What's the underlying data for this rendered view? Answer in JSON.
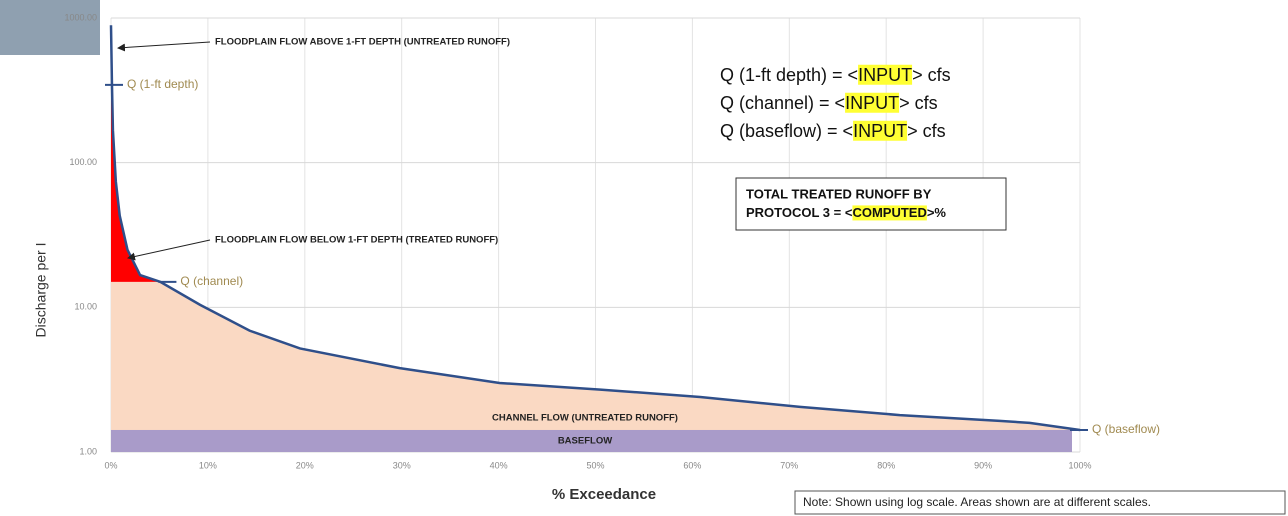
{
  "chart_data": {
    "type": "flow-duration",
    "x_label": "% Exceedance",
    "y_label": "Discharge per I",
    "log_y": true,
    "grid": true,
    "xlim": [
      0,
      100
    ],
    "xticks": [
      {
        "value": 0,
        "label": "0%"
      },
      {
        "value": 10,
        "label": "10%"
      },
      {
        "value": 20,
        "label": "20%"
      },
      {
        "value": 30,
        "label": "30%"
      },
      {
        "value": 40,
        "label": "40%"
      },
      {
        "value": 50,
        "label": "50%"
      },
      {
        "value": 60,
        "label": "60%"
      },
      {
        "value": 70,
        "label": "70%"
      },
      {
        "value": 80,
        "label": "80%"
      },
      {
        "value": 90,
        "label": "90%"
      },
      {
        "value": 100,
        "label": "100%"
      }
    ],
    "ylim": [
      1,
      1000
    ],
    "yticks": [
      {
        "value": 1,
        "label": "1.00"
      },
      {
        "value": 10,
        "label": "10.00"
      },
      {
        "value": 100,
        "label": "100.00"
      },
      {
        "value": 1000,
        "label": "1000.00"
      }
    ],
    "series": [
      {
        "color": "#2f4f8a",
        "x": [
          0,
          0.1,
          0.2,
          0.5,
          0.9,
          1.7,
          3.0,
          5.1,
          9.2,
          14.3,
          19.5,
          29.8,
          40.1,
          50.5,
          60.8,
          71.1,
          81.4,
          91.7,
          94.8,
          100
        ],
        "values": [
          891,
          345,
          167,
          74,
          43,
          25,
          16.7,
          15,
          10.4,
          6.9,
          5.2,
          3.8,
          3.0,
          2.7,
          2.4,
          2.05,
          1.8,
          1.64,
          1.59,
          1.42
        ]
      }
    ],
    "levels": [
      {
        "name": "Q (1-ft depth)",
        "value": 345,
        "color": "#ff0000"
      },
      {
        "name": "Q (channel)",
        "value": 15,
        "color": "#fad9c3"
      },
      {
        "name": "Q (baseflow)",
        "value": 1.42,
        "color": "#a99bc9"
      }
    ],
    "annotations": {
      "above": "FLOODPLAIN FLOW ABOVE 1-FT DEPTH (UNTREATED RUNOFF)",
      "below": "FLOODPLAIN FLOW BELOW 1-FT DEPTH (TREATED RUNOFF)",
      "channel": "CHANNEL FLOW (UNTREATED RUNOFF)",
      "baseflow": "BASEFLOW"
    },
    "equations": [
      {
        "prefix": "Q (1-ft depth) = <",
        "highlight": "INPUT",
        "suffix": "> cfs"
      },
      {
        "prefix": "Q (channel) = <",
        "highlight": "INPUT",
        "suffix": "> cfs"
      },
      {
        "prefix": "Q (baseflow) = <",
        "highlight": "INPUT",
        "suffix": "> cfs"
      }
    ],
    "result_box": {
      "line1": "TOTAL TREATED RUNOFF BY",
      "prefix": "PROTOCOL 3 = <",
      "highlight": "COMPUTED",
      "suffix": ">%"
    },
    "note": "Note: Shown using log scale. Areas shown are at different scales."
  }
}
